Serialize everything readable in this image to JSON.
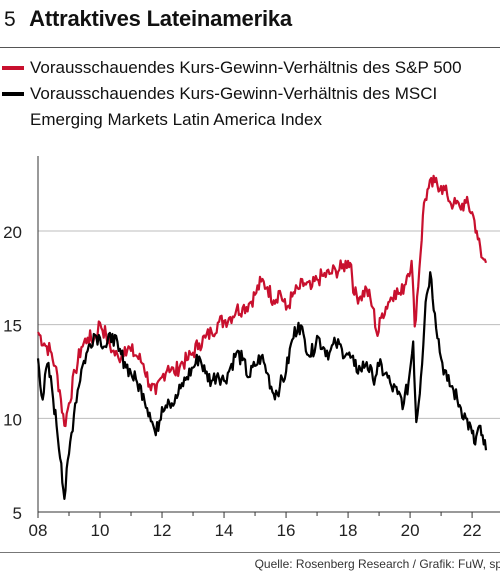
{
  "figure": {
    "number": "5",
    "title": "Attraktives Lateinamerika"
  },
  "legend": {
    "sp500_label": "Vorausschauendes Kurs-Gewinn-Verhältnis des S&P 500",
    "msci_label_line1": "Vorausschauendes Kurs-Gewinn-Verhältnis des MSCI",
    "msci_label_line2": "Emerging Markets Latin America Index"
  },
  "source": "Quelle: Rosenberg Research / Grafik: FuW, sp",
  "colors": {
    "sp500": "#c8102e",
    "msci": "#000000",
    "grid": "#bdbdbd",
    "axis": "#333333"
  },
  "chart_data": {
    "type": "line",
    "title": "Attraktives Lateinamerika",
    "xlabel": "",
    "ylabel": "",
    "xlim": [
      2008,
      2022.9
    ],
    "ylim": [
      5,
      24
    ],
    "y_ticks": [
      5,
      10,
      15,
      20
    ],
    "x_ticks": [
      2008,
      2010,
      2012,
      2014,
      2016,
      2018,
      2020,
      2022
    ],
    "x_tick_labels": [
      "08",
      "10",
      "12",
      "14",
      "16",
      "18",
      "20",
      "22"
    ],
    "grid": "horizontal",
    "series": [
      {
        "name": "Vorausschauendes Kurs-Gewinn-Verhältnis des S&P 500",
        "color": "#c8102e",
        "points": [
          [
            2008.0,
            14.6
          ],
          [
            2008.2,
            14.0
          ],
          [
            2008.4,
            13.6
          ],
          [
            2008.55,
            12.8
          ],
          [
            2008.7,
            11.5
          ],
          [
            2008.85,
            9.6
          ],
          [
            2009.0,
            10.8
          ],
          [
            2009.2,
            12.5
          ],
          [
            2009.4,
            13.8
          ],
          [
            2009.6,
            14.3
          ],
          [
            2009.8,
            14.2
          ],
          [
            2010.0,
            15.1
          ],
          [
            2010.2,
            14.4
          ],
          [
            2010.4,
            13.6
          ],
          [
            2010.6,
            13.2
          ],
          [
            2010.8,
            13.8
          ],
          [
            2011.0,
            13.6
          ],
          [
            2011.2,
            13.3
          ],
          [
            2011.4,
            12.9
          ],
          [
            2011.6,
            11.8
          ],
          [
            2011.8,
            11.3
          ],
          [
            2012.0,
            12.2
          ],
          [
            2012.2,
            12.8
          ],
          [
            2012.4,
            12.4
          ],
          [
            2012.6,
            12.9
          ],
          [
            2012.8,
            13.1
          ],
          [
            2013.0,
            13.5
          ],
          [
            2013.2,
            14.0
          ],
          [
            2013.4,
            14.3
          ],
          [
            2013.6,
            14.6
          ],
          [
            2013.8,
            15.1
          ],
          [
            2014.0,
            15.2
          ],
          [
            2014.2,
            15.4
          ],
          [
            2014.4,
            15.8
          ],
          [
            2014.6,
            15.9
          ],
          [
            2014.8,
            16.1
          ],
          [
            2015.0,
            16.6
          ],
          [
            2015.2,
            17.3
          ],
          [
            2015.4,
            17.0
          ],
          [
            2015.6,
            16.3
          ],
          [
            2015.8,
            16.8
          ],
          [
            2016.0,
            15.8
          ],
          [
            2016.2,
            16.5
          ],
          [
            2016.4,
            16.9
          ],
          [
            2016.6,
            17.2
          ],
          [
            2016.8,
            16.9
          ],
          [
            2017.0,
            17.4
          ],
          [
            2017.2,
            17.6
          ],
          [
            2017.4,
            17.7
          ],
          [
            2017.6,
            17.9
          ],
          [
            2017.8,
            18.0
          ],
          [
            2018.0,
            18.4
          ],
          [
            2018.1,
            18.2
          ],
          [
            2018.2,
            16.6
          ],
          [
            2018.4,
            16.5
          ],
          [
            2018.6,
            16.9
          ],
          [
            2018.8,
            15.9
          ],
          [
            2018.95,
            14.4
          ],
          [
            2019.1,
            15.6
          ],
          [
            2019.3,
            16.2
          ],
          [
            2019.5,
            16.8
          ],
          [
            2019.7,
            16.6
          ],
          [
            2019.9,
            17.6
          ],
          [
            2020.05,
            18.4
          ],
          [
            2020.15,
            14.9
          ],
          [
            2020.3,
            18.0
          ],
          [
            2020.45,
            21.5
          ],
          [
            2020.6,
            22.3
          ],
          [
            2020.8,
            22.6
          ],
          [
            2021.0,
            22.4
          ],
          [
            2021.2,
            21.9
          ],
          [
            2021.4,
            21.4
          ],
          [
            2021.6,
            21.3
          ],
          [
            2021.8,
            21.5
          ],
          [
            2022.0,
            21.0
          ],
          [
            2022.15,
            20.0
          ],
          [
            2022.3,
            18.6
          ],
          [
            2022.45,
            18.3
          ]
        ]
      },
      {
        "name": "Vorausschauendes Kurs-Gewinn-Verhältnis des MSCI Emerging Markets Latin America Index",
        "color": "#000000",
        "points": [
          [
            2008.0,
            13.2
          ],
          [
            2008.15,
            11.0
          ],
          [
            2008.3,
            12.9
          ],
          [
            2008.45,
            11.6
          ],
          [
            2008.6,
            9.6
          ],
          [
            2008.75,
            7.6
          ],
          [
            2008.85,
            5.7
          ],
          [
            2009.0,
            8.1
          ],
          [
            2009.2,
            10.8
          ],
          [
            2009.4,
            12.6
          ],
          [
            2009.6,
            13.6
          ],
          [
            2009.8,
            14.5
          ],
          [
            2010.0,
            14.3
          ],
          [
            2010.2,
            13.8
          ],
          [
            2010.4,
            14.5
          ],
          [
            2010.6,
            13.6
          ],
          [
            2010.8,
            13.0
          ],
          [
            2011.0,
            12.4
          ],
          [
            2011.2,
            11.9
          ],
          [
            2011.4,
            11.3
          ],
          [
            2011.6,
            10.3
          ],
          [
            2011.8,
            9.1
          ],
          [
            2012.0,
            10.6
          ],
          [
            2012.2,
            11.0
          ],
          [
            2012.4,
            10.8
          ],
          [
            2012.6,
            11.6
          ],
          [
            2012.8,
            12.2
          ],
          [
            2013.0,
            12.7
          ],
          [
            2013.2,
            13.3
          ],
          [
            2013.4,
            12.4
          ],
          [
            2013.6,
            12.0
          ],
          [
            2013.8,
            12.4
          ],
          [
            2014.0,
            12.0
          ],
          [
            2014.2,
            12.7
          ],
          [
            2014.4,
            13.5
          ],
          [
            2014.6,
            13.1
          ],
          [
            2014.8,
            12.2
          ],
          [
            2015.0,
            12.8
          ],
          [
            2015.2,
            13.3
          ],
          [
            2015.4,
            12.4
          ],
          [
            2015.6,
            11.3
          ],
          [
            2015.8,
            11.7
          ],
          [
            2016.0,
            12.5
          ],
          [
            2016.2,
            14.2
          ],
          [
            2016.4,
            15.1
          ],
          [
            2016.6,
            14.2
          ],
          [
            2016.8,
            13.3
          ],
          [
            2017.0,
            14.4
          ],
          [
            2017.2,
            13.8
          ],
          [
            2017.4,
            13.5
          ],
          [
            2017.6,
            14.0
          ],
          [
            2017.8,
            13.7
          ],
          [
            2018.0,
            13.4
          ],
          [
            2018.2,
            12.8
          ],
          [
            2018.4,
            12.6
          ],
          [
            2018.6,
            13.0
          ],
          [
            2018.8,
            12.1
          ],
          [
            2019.0,
            12.8
          ],
          [
            2019.2,
            12.4
          ],
          [
            2019.4,
            11.7
          ],
          [
            2019.6,
            11.3
          ],
          [
            2019.8,
            10.8
          ],
          [
            2019.95,
            11.9
          ],
          [
            2020.1,
            14.1
          ],
          [
            2020.2,
            9.8
          ],
          [
            2020.35,
            12.2
          ],
          [
            2020.5,
            16.2
          ],
          [
            2020.65,
            17.8
          ],
          [
            2020.8,
            15.6
          ],
          [
            2021.0,
            13.2
          ],
          [
            2021.2,
            12.0
          ],
          [
            2021.4,
            11.5
          ],
          [
            2021.6,
            10.7
          ],
          [
            2021.8,
            10.0
          ],
          [
            2022.0,
            9.2
          ],
          [
            2022.1,
            8.6
          ],
          [
            2022.2,
            9.5
          ],
          [
            2022.3,
            9.1
          ],
          [
            2022.45,
            8.3
          ]
        ]
      }
    ]
  }
}
